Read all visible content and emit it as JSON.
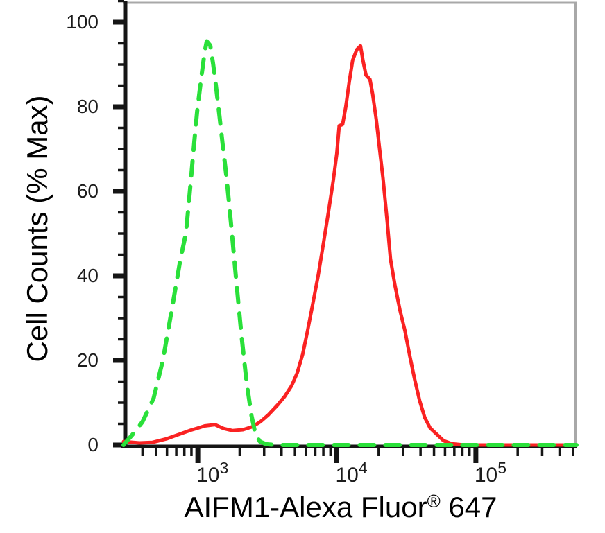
{
  "labels": {
    "y_title": "Cell Counts (% Max)",
    "x_title_main": "AIFM1-Alexa Fluor",
    "x_title_sup": "®",
    "x_title_tail": " 647"
  },
  "colors": {
    "sample_red": "#fa2222",
    "control_green": "#2ae03a",
    "axis": "#151515",
    "frame": "#a8a8a8",
    "tick_label": "#1c1c1c",
    "background": "#ffffff"
  },
  "chart_data": {
    "type": "line",
    "subtype": "flow-cytometry-histogram",
    "title": "",
    "xlabel": "AIFM1-Alexa Fluor® 647",
    "ylabel": "Cell Counts (% Max)",
    "x_scale": "log",
    "y_scale": "linear",
    "xlim": [
      292,
      530000
    ],
    "ylim": [
      0,
      105
    ],
    "grid": false,
    "legend": "none",
    "x_major_ticks": [
      {
        "value": 1000,
        "base": "10",
        "exp": "3"
      },
      {
        "value": 10000,
        "base": "10",
        "exp": "4"
      },
      {
        "value": 100000,
        "base": "10",
        "exp": "5"
      }
    ],
    "x_minor_ticks": [
      400,
      500,
      600,
      700,
      800,
      900,
      2000,
      3000,
      4000,
      5000,
      6000,
      7000,
      8000,
      9000,
      20000,
      30000,
      40000,
      50000,
      60000,
      70000,
      80000,
      90000,
      200000,
      300000,
      400000,
      500000
    ],
    "y_major_ticks": [
      {
        "value": 0,
        "label": "0"
      },
      {
        "value": 20,
        "label": "20"
      },
      {
        "value": 40,
        "label": "40"
      },
      {
        "value": 60,
        "label": "60"
      },
      {
        "value": 80,
        "label": "80"
      },
      {
        "value": 100,
        "label": "100"
      }
    ],
    "y_minor_step": 5,
    "series": [
      {
        "name": "red-solid-stained",
        "style": "solid",
        "color": "#fa2222",
        "stroke_width": 5,
        "points": [
          [
            292,
            0.8
          ],
          [
            380,
            0.5
          ],
          [
            470,
            0.6
          ],
          [
            600,
            1.5
          ],
          [
            730,
            2.5
          ],
          [
            890,
            3.5
          ],
          [
            1000,
            4.0
          ],
          [
            1120,
            4.5
          ],
          [
            1330,
            4.8
          ],
          [
            1530,
            3.9
          ],
          [
            1780,
            3.4
          ],
          [
            2110,
            3.6
          ],
          [
            2460,
            4.3
          ],
          [
            2820,
            5.5
          ],
          [
            3230,
            7.2
          ],
          [
            3760,
            9.5
          ],
          [
            4220,
            11.5
          ],
          [
            4730,
            14
          ],
          [
            5180,
            17
          ],
          [
            5680,
            21.5
          ],
          [
            6160,
            27
          ],
          [
            6680,
            33
          ],
          [
            7330,
            40
          ],
          [
            8040,
            48
          ],
          [
            8690,
            55
          ],
          [
            9420,
            62.5
          ],
          [
            10000,
            69
          ],
          [
            10400,
            75.5
          ],
          [
            11000,
            75.8
          ],
          [
            11600,
            80
          ],
          [
            12300,
            86
          ],
          [
            13000,
            91
          ],
          [
            13900,
            93.5
          ],
          [
            14800,
            94.4
          ],
          [
            15400,
            91
          ],
          [
            16200,
            87.5
          ],
          [
            17300,
            86.5
          ],
          [
            18100,
            83
          ],
          [
            19200,
            77
          ],
          [
            20300,
            70
          ],
          [
            21500,
            63
          ],
          [
            23000,
            53
          ],
          [
            24300,
            44
          ],
          [
            26100,
            38
          ],
          [
            28400,
            32
          ],
          [
            30900,
            27
          ],
          [
            33500,
            21
          ],
          [
            36300,
            15.5
          ],
          [
            39400,
            10.5
          ],
          [
            42900,
            6.5
          ],
          [
            46900,
            4
          ],
          [
            52500,
            2.5
          ],
          [
            58600,
            1
          ],
          [
            67300,
            0.3
          ],
          [
            80000,
            0.05
          ],
          [
            100000,
            0
          ],
          [
            530000,
            0
          ]
        ]
      },
      {
        "name": "green-dashed-control",
        "style": "dashed",
        "color": "#2ae03a",
        "stroke_width": 6,
        "dash": [
          21,
          16
        ],
        "points": [
          [
            292,
            0
          ],
          [
            310,
            1
          ],
          [
            350,
            3
          ],
          [
            400,
            5.5
          ],
          [
            480,
            11
          ],
          [
            560,
            20
          ],
          [
            650,
            32
          ],
          [
            750,
            44
          ],
          [
            820,
            50
          ],
          [
            860,
            57
          ],
          [
            905,
            65
          ],
          [
            945,
            72
          ],
          [
            990,
            79
          ],
          [
            1060,
            87
          ],
          [
            1120,
            93
          ],
          [
            1160,
            95.5
          ],
          [
            1230,
            94.5
          ],
          [
            1290,
            90
          ],
          [
            1350,
            85
          ],
          [
            1430,
            78
          ],
          [
            1510,
            71
          ],
          [
            1600,
            64
          ],
          [
            1680,
            57
          ],
          [
            1760,
            50
          ],
          [
            1900,
            38
          ],
          [
            2060,
            26
          ],
          [
            2240,
            15
          ],
          [
            2430,
            7
          ],
          [
            2600,
            2.5
          ],
          [
            2800,
            0.8
          ],
          [
            3100,
            0.2
          ],
          [
            3600,
            0
          ],
          [
            530000,
            0
          ]
        ]
      }
    ]
  }
}
